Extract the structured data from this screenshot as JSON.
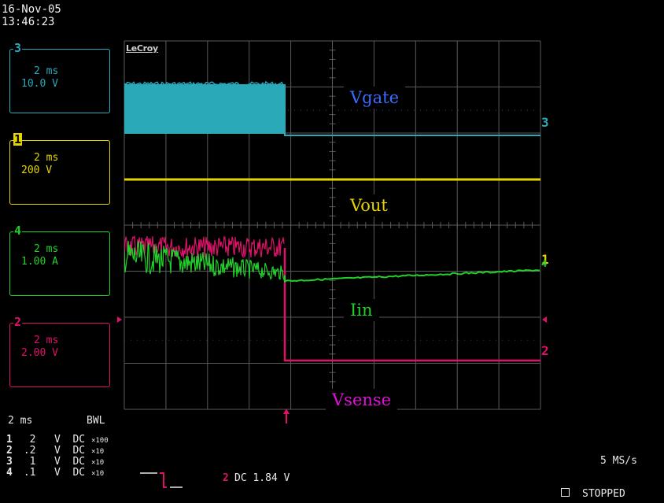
{
  "header": {
    "date": "16-Nov-05",
    "time": "13:46:23"
  },
  "brand": "LeCroy",
  "channels": [
    {
      "id": "3",
      "timebase": "2 ms",
      "scale": "10.0 V",
      "color": "#2aa9b9"
    },
    {
      "id": "1",
      "timebase": "2 ms",
      "scale": "200 V",
      "color": "#e6d400"
    },
    {
      "id": "4",
      "timebase": "2 ms",
      "scale": "1.00 A",
      "color": "#22d02a"
    },
    {
      "id": "2",
      "timebase": "2 ms",
      "scale": "2.00 V",
      "color": "#e0106a"
    }
  ],
  "trace_labels": {
    "vgate": "Vgate",
    "vout": "Vout",
    "iin": "Iin",
    "vsense": "Vsense"
  },
  "label_colors": {
    "vgate": "#3a6cff",
    "vout": "#e6d400",
    "iin": "#22d02a",
    "vsense": "#e010d8"
  },
  "markers": {
    "ch3": "3",
    "ch1": "1",
    "ch4": "4",
    "ch2": "2"
  },
  "bottom": {
    "timebase": "2 ms",
    "bwl": "BWL",
    "rows": [
      {
        "ch": "1",
        "val": "2",
        "unit": "V",
        "coupling": "DC",
        "probe": "×100"
      },
      {
        "ch": "2",
        "val": ".2",
        "unit": "V",
        "coupling": "DC",
        "probe": "×10"
      },
      {
        "ch": "3",
        "val": "1",
        "unit": "V",
        "coupling": "DC",
        "probe": "×10"
      },
      {
        "ch": "4",
        "val": ".1",
        "unit": "V",
        "coupling": "DC",
        "probe": "×10"
      }
    ],
    "trigger_ch": "2",
    "trigger_info": "DC 1.84 V",
    "sample_rate": "5 MS/s",
    "status": "STOPPED"
  }
}
